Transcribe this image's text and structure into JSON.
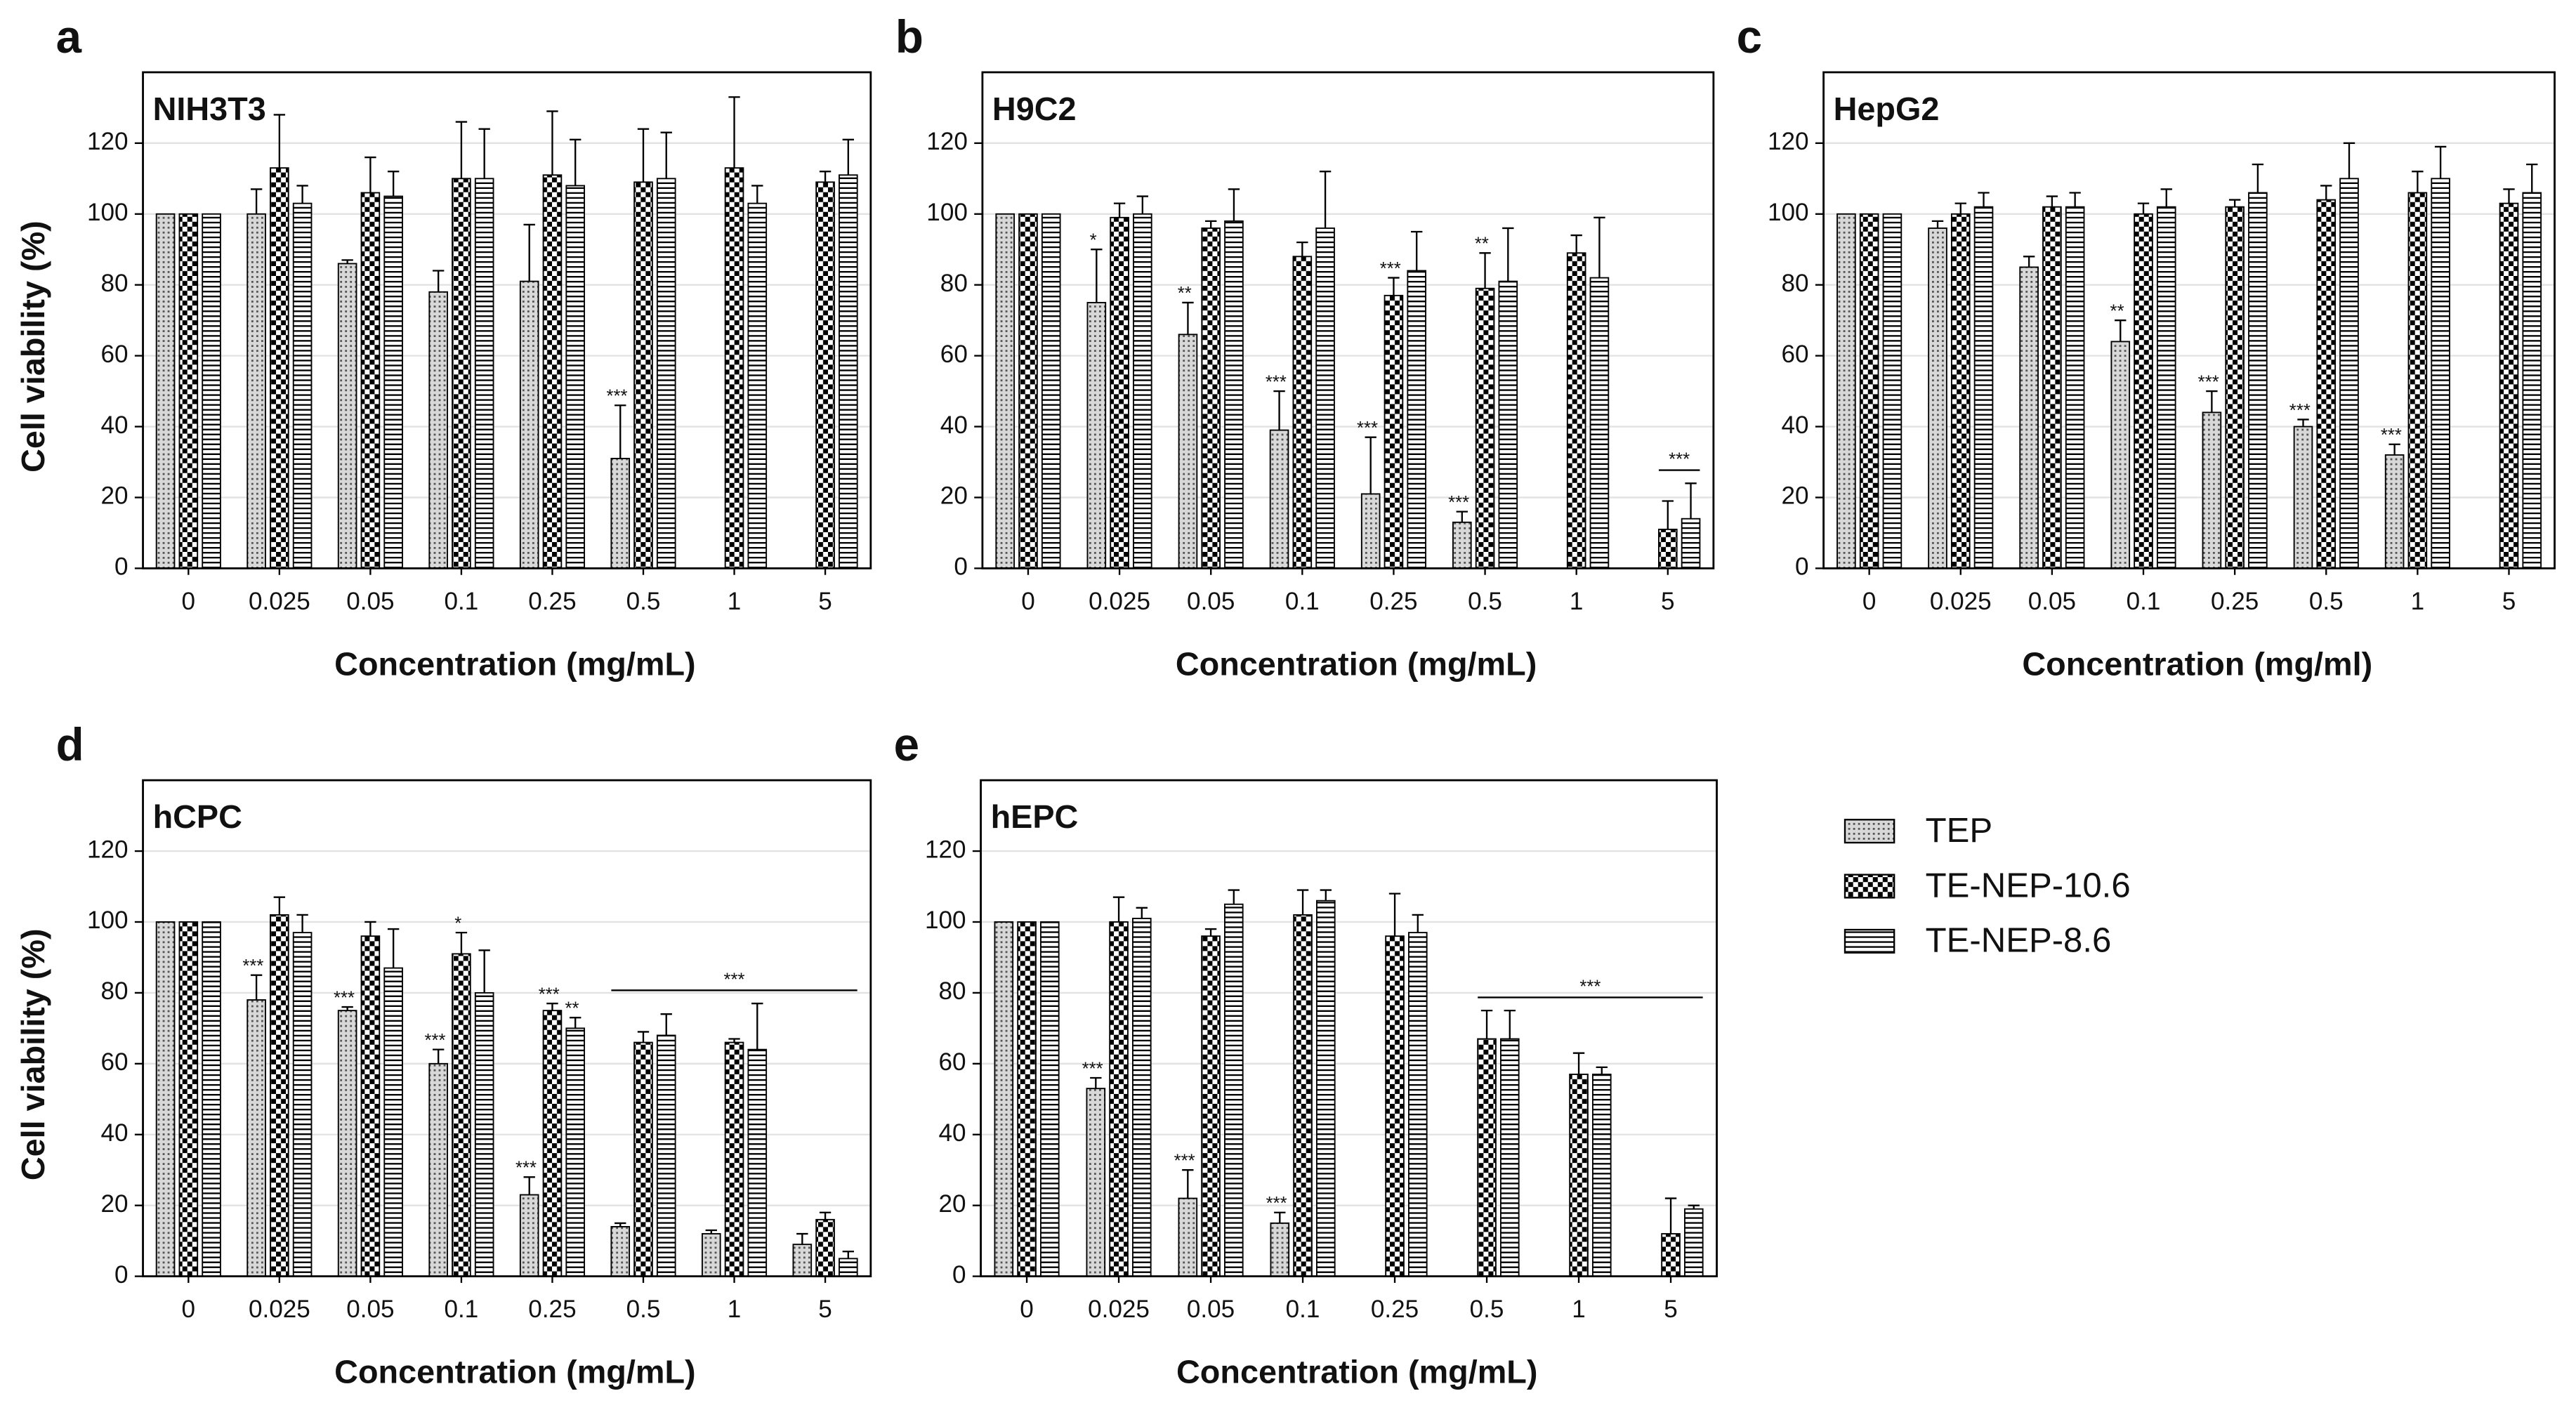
{
  "chart_data": [
    {
      "type": "bar",
      "panel": "a",
      "title": "NIH3T3",
      "x_label": "Concentration (mg/mL)",
      "y_label": "Cell viability (%)",
      "categories": [
        "0",
        "0.025",
        "0.05",
        "0.1",
        "0.25",
        "0.5",
        "1",
        "5"
      ],
      "ylim": [
        0,
        140
      ],
      "yticks": [
        0,
        20,
        40,
        60,
        80,
        100,
        120
      ],
      "grid": true,
      "series": [
        {
          "name": "TEP",
          "color": "#000000",
          "pattern": "crosshatch",
          "values": [
            100,
            100,
            86,
            78,
            81,
            31,
            null,
            null
          ],
          "errors": [
            null,
            7,
            1,
            6,
            16,
            15,
            null,
            null
          ],
          "significance": [
            null,
            null,
            null,
            null,
            null,
            "***",
            null,
            null
          ]
        },
        {
          "name": "TE-NEP-10.6",
          "color": "#000000",
          "pattern": "checker",
          "values": [
            100,
            113,
            106,
            110,
            111,
            109,
            113,
            109
          ],
          "errors": [
            null,
            15,
            10,
            16,
            18,
            15,
            20,
            3
          ]
        },
        {
          "name": "TE-NEP-8.6",
          "color": "#000000",
          "pattern": "hlines",
          "values": [
            100,
            103,
            105,
            110,
            108,
            110,
            103,
            111
          ],
          "errors": [
            null,
            5,
            7,
            14,
            13,
            13,
            5,
            10
          ]
        }
      ]
    },
    {
      "type": "bar",
      "panel": "b",
      "title": "H9C2",
      "x_label": "Concentration (mg/mL)",
      "categories": [
        "0",
        "0.025",
        "0.05",
        "0.1",
        "0.25",
        "0.5",
        "1",
        "5"
      ],
      "ylim": [
        0,
        140
      ],
      "yticks": [
        0,
        20,
        40,
        60,
        80,
        100,
        120
      ],
      "grid": true,
      "series": [
        {
          "color": "#000000",
          "pattern": "crosshatch",
          "values": [
            100,
            75,
            66,
            39,
            21,
            13,
            null,
            null
          ],
          "errors": [
            null,
            15,
            9,
            11,
            16,
            3,
            null,
            null
          ],
          "significance": [
            null,
            "*",
            "**",
            "***",
            "***",
            "***",
            null,
            null
          ]
        },
        {
          "color": "#000000",
          "pattern": "checker",
          "values": [
            100,
            99,
            96,
            88,
            77,
            79,
            89,
            11
          ],
          "errors": [
            null,
            4,
            2,
            4,
            5,
            10,
            5,
            8
          ],
          "significance": [
            null,
            null,
            null,
            null,
            "***",
            "**",
            null,
            null
          ]
        },
        {
          "color": "#000000",
          "pattern": "hlines",
          "values": [
            100,
            100,
            98,
            96,
            84,
            81,
            82,
            14
          ],
          "errors": [
            null,
            5,
            9,
            16,
            11,
            15,
            17,
            10
          ]
        }
      ],
      "brackets": [
        {
          "text": "***",
          "span": [
            "5",
            "5"
          ]
        }
      ]
    },
    {
      "type": "bar",
      "panel": "c",
      "title": "HepG2",
      "x_label": "Concentration (mg/ml)",
      "categories": [
        "0",
        "0.025",
        "0.05",
        "0.1",
        "0.25",
        "0.5",
        "1",
        "5"
      ],
      "ylim": [
        0,
        140
      ],
      "yticks": [
        0,
        20,
        40,
        60,
        80,
        100,
        120
      ],
      "grid": true,
      "series": [
        {
          "color": "#000000",
          "pattern": "crosshatch",
          "values": [
            100,
            96,
            85,
            64,
            44,
            40,
            32,
            null
          ],
          "errors": [
            null,
            2,
            3,
            6,
            6,
            2,
            3,
            null
          ],
          "significance": [
            null,
            null,
            null,
            "**",
            "***",
            "***",
            "***",
            null
          ]
        },
        {
          "color": "#000000",
          "pattern": "checker",
          "values": [
            100,
            100,
            102,
            100,
            102,
            104,
            106,
            103
          ],
          "errors": [
            null,
            3,
            3,
            3,
            2,
            4,
            6,
            4
          ]
        },
        {
          "color": "#000000",
          "pattern": "hlines",
          "values": [
            100,
            102,
            102,
            102,
            106,
            110,
            110,
            106
          ],
          "errors": [
            null,
            4,
            4,
            5,
            8,
            10,
            9,
            8
          ]
        }
      ]
    },
    {
      "type": "bar",
      "panel": "d",
      "title": "hCPC",
      "x_label": "Concentration (mg/mL)",
      "y_label": "Cell viability (%)",
      "categories": [
        "0",
        "0.025",
        "0.05",
        "0.1",
        "0.25",
        "0.5",
        "1",
        "5"
      ],
      "ylim": [
        0,
        140
      ],
      "yticks": [
        0,
        20,
        40,
        60,
        80,
        100,
        120
      ],
      "grid": true,
      "series": [
        {
          "color": "#000000",
          "pattern": "crosshatch",
          "values": [
            100,
            78,
            75,
            60,
            23,
            14,
            12,
            9
          ],
          "errors": [
            null,
            7,
            1,
            4,
            5,
            1,
            1,
            3
          ],
          "significance": [
            null,
            "***",
            "***",
            "***",
            "***",
            null,
            null,
            null
          ]
        },
        {
          "color": "#000000",
          "pattern": "checker",
          "values": [
            100,
            102,
            96,
            91,
            75,
            66,
            66,
            16
          ],
          "errors": [
            null,
            5,
            4,
            6,
            2,
            3,
            1,
            2
          ],
          "significance": [
            null,
            null,
            null,
            "*",
            "***",
            null,
            null,
            null
          ]
        },
        {
          "color": "#000000",
          "pattern": "hlines",
          "values": [
            100,
            97,
            87,
            80,
            70,
            68,
            64,
            5
          ],
          "errors": [
            null,
            5,
            11,
            12,
            3,
            6,
            13,
            2
          ],
          "significance": [
            null,
            null,
            null,
            null,
            "**",
            null,
            null,
            null
          ]
        }
      ],
      "brackets": [
        {
          "text": "***",
          "span": [
            "0.5",
            "5"
          ]
        }
      ]
    },
    {
      "type": "bar",
      "panel": "e",
      "title": "hEPC",
      "x_label": "Concentration (mg/mL)",
      "categories": [
        "0",
        "0.025",
        "0.05",
        "0.1",
        "0.25",
        "0.5",
        "1",
        "5"
      ],
      "ylim": [
        0,
        140
      ],
      "yticks": [
        0,
        20,
        40,
        60,
        80,
        100,
        120
      ],
      "grid": true,
      "series": [
        {
          "color": "#000000",
          "pattern": "crosshatch",
          "values": [
            100,
            53,
            22,
            15,
            null,
            null,
            null,
            null
          ],
          "errors": [
            null,
            3,
            8,
            3,
            null,
            null,
            null,
            null
          ],
          "significance": [
            null,
            "***",
            "***",
            "***",
            null,
            null,
            null,
            null
          ]
        },
        {
          "color": "#000000",
          "pattern": "checker",
          "values": [
            100,
            100,
            96,
            102,
            96,
            67,
            57,
            12
          ],
          "errors": [
            null,
            7,
            2,
            7,
            12,
            8,
            6,
            10
          ]
        },
        {
          "color": "#000000",
          "pattern": "hlines",
          "values": [
            100,
            101,
            105,
            106,
            97,
            67,
            57,
            19
          ],
          "errors": [
            null,
            3,
            4,
            3,
            5,
            8,
            2,
            1
          ]
        }
      ],
      "brackets": [
        {
          "text": "***",
          "span": [
            "0.5",
            "5"
          ]
        }
      ]
    }
  ]
}
